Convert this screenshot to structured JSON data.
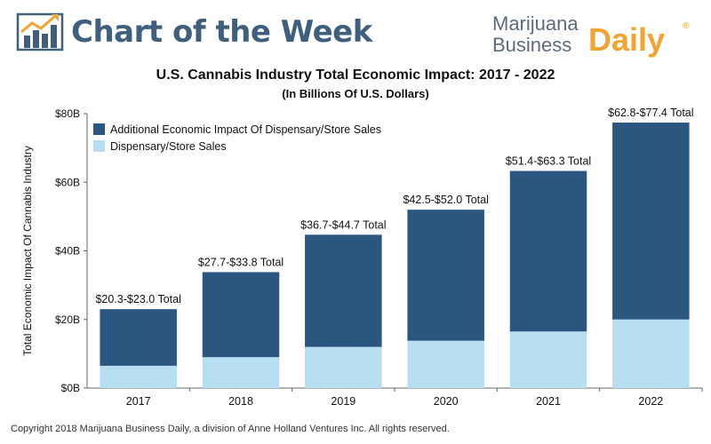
{
  "header": {
    "title": "Chart of the Week",
    "brand_line1": "Marijuana",
    "brand_line2": "Business",
    "brand_daily": "Daily",
    "brand_reg": "®",
    "logo_icon": "bar-chart-arrow-icon"
  },
  "colors": {
    "dark_bar": "#2b5680",
    "light_bar": "#b8def2",
    "header_blue": "#3e5f7e",
    "brand_orange": "#f0a431"
  },
  "chart_data": {
    "type": "bar",
    "stacked": true,
    "title": "U.S. Cannabis Industry Total Economic Impact: 2017 - 2022",
    "subtitle": "(In Billions Of U.S. Dollars)",
    "xlabel": "",
    "ylabel": "Total Economic Impact Of Cannabis Industry",
    "ylim": [
      0,
      80
    ],
    "yticks": [
      0,
      20,
      40,
      60,
      80
    ],
    "ytick_labels": [
      "$0B",
      "$20B",
      "$40B",
      "$60B",
      "$80B"
    ],
    "categories": [
      "2017",
      "2018",
      "2019",
      "2020",
      "2021",
      "2022"
    ],
    "series": [
      {
        "name": "Dispensary/Store Sales",
        "color": "#b8def2",
        "values": [
          6.5,
          9.0,
          12.0,
          13.8,
          16.5,
          20.0
        ]
      },
      {
        "name": "Additional Economic Impact Of Dispensary/Store Sales",
        "color": "#2b5680",
        "values": [
          16.5,
          24.8,
          32.7,
          38.2,
          46.8,
          57.4
        ]
      }
    ],
    "data_labels": [
      "$20.3-$23.0 Total",
      "$27.7-$33.8 Total",
      "$36.7-$44.7 Total",
      "$42.5-$52.0 Total",
      "$51.4-$63.3 Total",
      "$62.8-$77.4 Total"
    ],
    "legend_position": "top-left",
    "grid": false
  },
  "footer": {
    "copyright": "Copyright 2018 Marijuana Business Daily, a division of Anne Holland Ventures Inc. All rights reserved."
  }
}
